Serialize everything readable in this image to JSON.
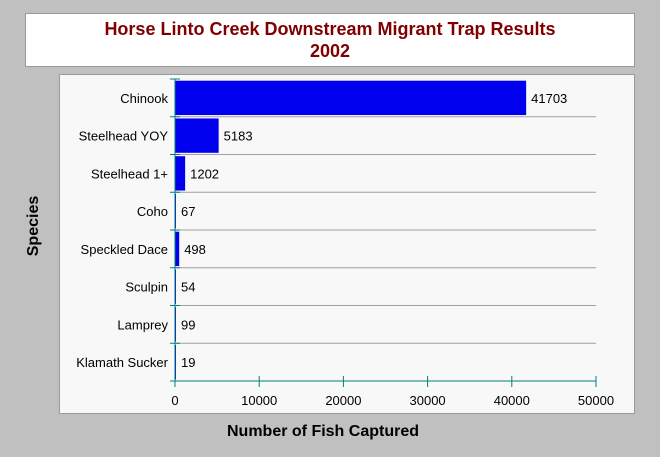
{
  "chart_data": {
    "type": "bar",
    "orientation": "horizontal",
    "title": "Horse Linto Creek Downstream Migrant Trap Results",
    "subtitle": "2002",
    "xlabel": "Number of Fish Captured",
    "ylabel": "Species",
    "categories": [
      "Chinook",
      "Steelhead YOY",
      "Steelhead 1+",
      "Coho",
      "Speckled Dace",
      "Sculpin",
      "Lamprey",
      "Klamath Sucker"
    ],
    "values": [
      41703,
      5183,
      1202,
      67,
      498,
      54,
      99,
      19
    ],
    "value_labels": [
      "41703",
      "5183",
      "1202",
      "67",
      "498",
      "54",
      "99",
      "19"
    ],
    "xlim": [
      0,
      50000
    ],
    "x_ticks": [
      0,
      10000,
      20000,
      30000,
      40000,
      50000
    ],
    "x_tick_labels": [
      "0",
      "10000",
      "20000",
      "30000",
      "40000",
      "50000"
    ],
    "grid": true,
    "colors": {
      "bar": "#0000ee",
      "axis": "#008080",
      "grid": "#a0a0a0",
      "title": "#800000"
    }
  }
}
